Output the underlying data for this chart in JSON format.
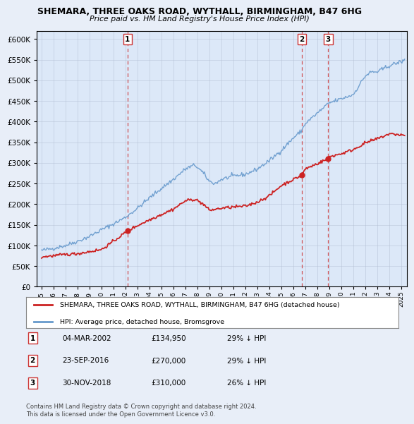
{
  "title": "SHEMARA, THREE OAKS ROAD, WYTHALL, BIRMINGHAM, B47 6HG",
  "subtitle": "Price paid vs. HM Land Registry's House Price Index (HPI)",
  "ylim": [
    0,
    620000
  ],
  "yticks": [
    0,
    50000,
    100000,
    150000,
    200000,
    250000,
    300000,
    350000,
    400000,
    450000,
    500000,
    550000,
    600000
  ],
  "xlim_start": 1994.6,
  "xlim_end": 2025.5,
  "sale_dates": [
    2002.17,
    2016.73,
    2018.92
  ],
  "sale_prices": [
    134950,
    270000,
    310000
  ],
  "sale_labels": [
    "1",
    "2",
    "3"
  ],
  "hpi_color": "#6699cc",
  "price_color": "#cc2222",
  "vline_color": "#cc3333",
  "legend_label_price": "SHEMARA, THREE OAKS ROAD, WYTHALL, BIRMINGHAM, B47 6HG (detached house)",
  "legend_label_hpi": "HPI: Average price, detached house, Bromsgrove",
  "table_data": [
    [
      "1",
      "04-MAR-2002",
      "£134,950",
      "29% ↓ HPI"
    ],
    [
      "2",
      "23-SEP-2016",
      "£270,000",
      "29% ↓ HPI"
    ],
    [
      "3",
      "30-NOV-2018",
      "£310,000",
      "26% ↓ HPI"
    ]
  ],
  "footnote": "Contains HM Land Registry data © Crown copyright and database right 2024.\nThis data is licensed under the Open Government Licence v3.0.",
  "background_color": "#e8eef8",
  "plot_bg_color": "#dce8f8"
}
